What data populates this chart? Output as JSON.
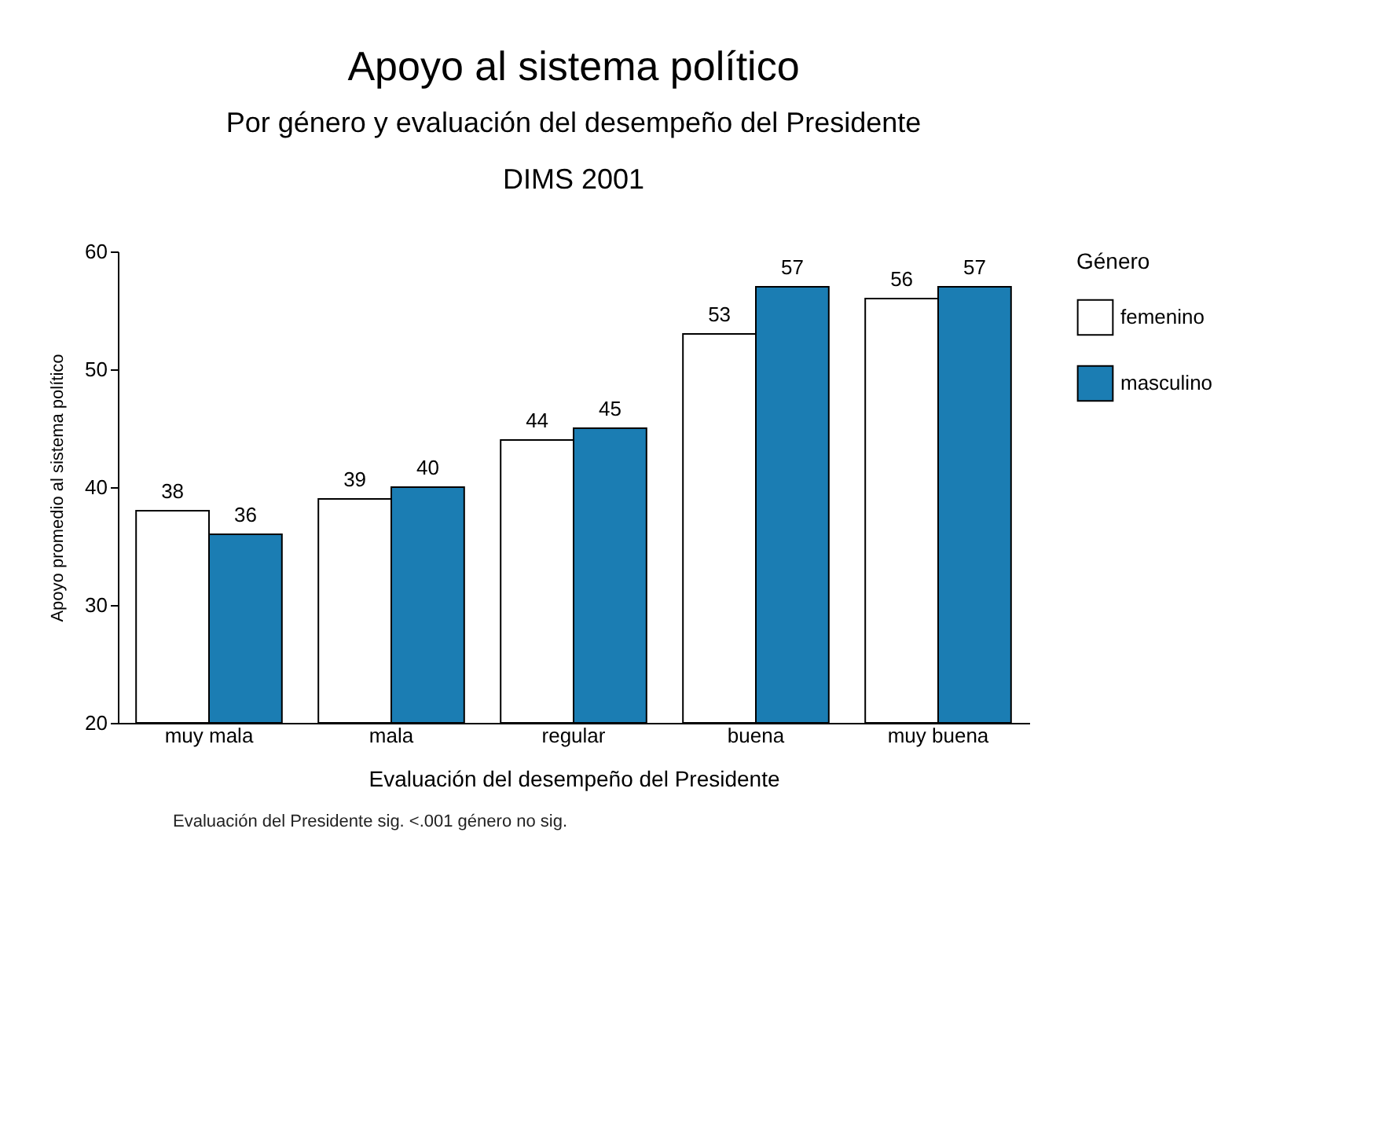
{
  "chart_data": {
    "type": "bar",
    "title": "Apoyo al sistema político",
    "subtitle": "Por género y evaluación del desempeño del Presidente\nDIMS 2001",
    "xlabel": "Evaluación del desempeño del Presidente",
    "ylabel": "Apoyo promedio al sistema político",
    "legend_title": "Género",
    "categories": [
      "muy mala",
      "mala",
      "regular",
      "buena",
      "muy buena"
    ],
    "series": [
      {
        "name": "femenino",
        "color": "#ffffff",
        "values": [
          38,
          39,
          44,
          53,
          56
        ]
      },
      {
        "name": "masculino",
        "color": "#1b7db3",
        "values": [
          36,
          40,
          45,
          57,
          57
        ]
      }
    ],
    "ylim": [
      20,
      60
    ],
    "yticks": [
      20,
      30,
      40,
      50,
      60
    ],
    "grid": false,
    "legend": "right",
    "data_labels": true,
    "annotations": [
      "Evaluación del Presidente sig. <.001 género no sig."
    ]
  }
}
